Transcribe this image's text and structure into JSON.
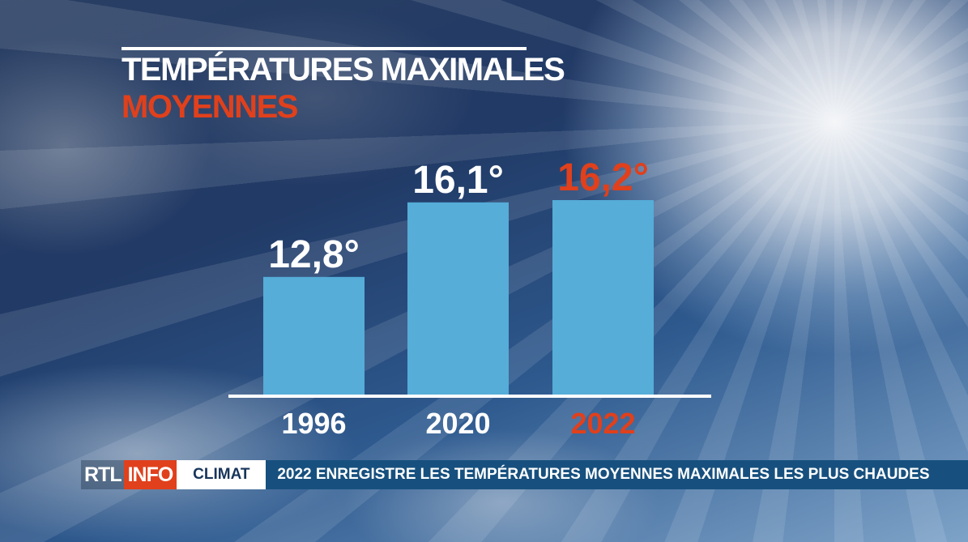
{
  "title_line1": "TEMPÉRATURES MAXIMALES",
  "title_line2": "MOYENNES",
  "colors": {
    "bar": "#55add8",
    "highlight": "#e0401c",
    "text": "#ffffff",
    "ticker_bg": "#17507e",
    "category_bg": "#ffffff"
  },
  "chart_data": {
    "type": "bar",
    "categories": [
      "1996",
      "2020",
      "2022"
    ],
    "values": [
      12.8,
      16.1,
      16.2
    ],
    "value_labels": [
      "12,8°",
      "16,1°",
      "16,2°"
    ],
    "highlight_index": 2,
    "title": "TEMPÉRATURES MAXIMALES MOYENNES",
    "xlabel": "",
    "ylabel": "",
    "grid": false,
    "legend": "none"
  },
  "ticker": {
    "logo_rtl": "RTL",
    "logo_info": "INFO",
    "category": "CLIMAT",
    "headline": "2022 ENREGISTRE LES TEMPÉRATURES MOYENNES MAXIMALES LES PLUS CHAUDES"
  }
}
